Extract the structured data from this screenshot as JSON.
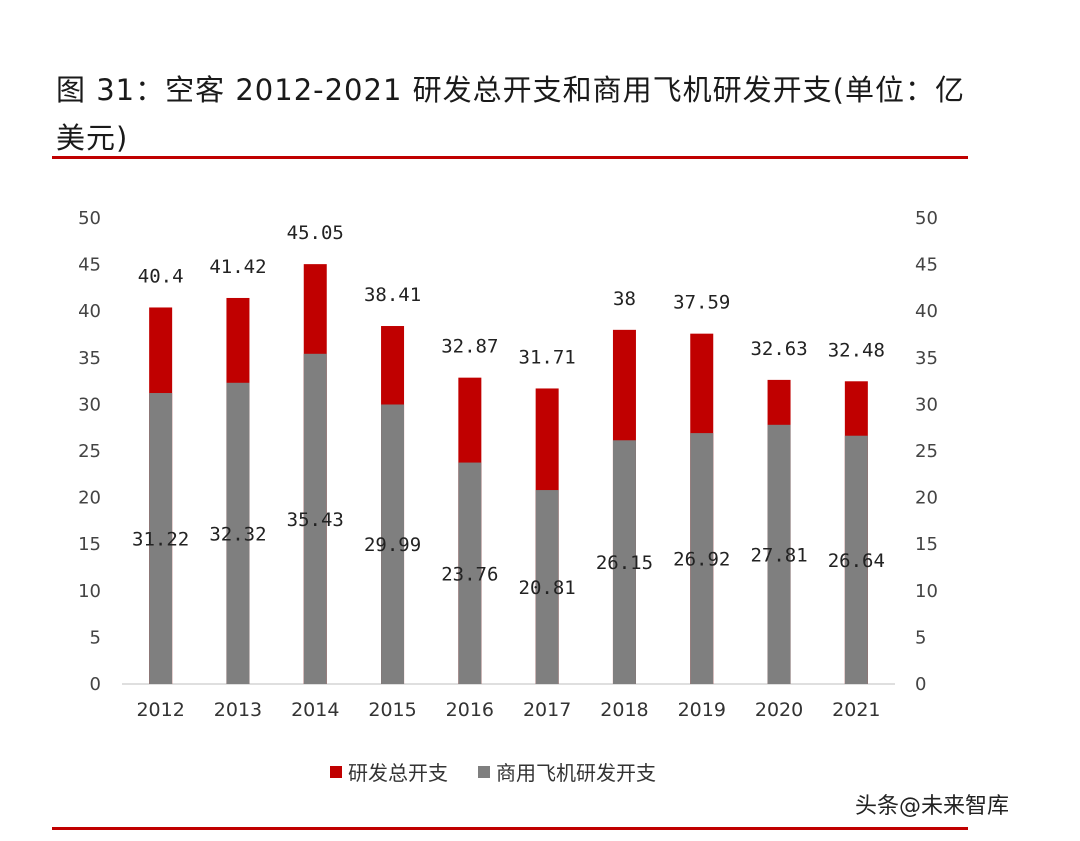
{
  "header": {
    "title": "图 31：空客 2012-2021 研发总开支和商用飞机研发开支(单位：亿美元)"
  },
  "legend": {
    "total": "研发总开支",
    "commercial": "商用飞机研发开支"
  },
  "watermark": {
    "prefix": "头条",
    "name": "@未来智库"
  },
  "colors": {
    "total": "#c00000",
    "commercial": "#7f7f7f",
    "rule": "#c00000"
  },
  "chart_data": {
    "type": "bar",
    "stacked": "overlay",
    "categories": [
      "2012",
      "2013",
      "2014",
      "2015",
      "2016",
      "2017",
      "2018",
      "2019",
      "2020",
      "2021"
    ],
    "series": [
      {
        "name": "研发总开支",
        "values": [
          40.4,
          41.42,
          45.05,
          38.41,
          32.87,
          31.71,
          38,
          37.59,
          32.63,
          32.48
        ],
        "labels": [
          "40.4",
          "41.42",
          "45.05",
          "38.41",
          "32.87",
          "31.71",
          "38",
          "37.59",
          "32.63",
          "32.48"
        ]
      },
      {
        "name": "商用飞机研发开支",
        "values": [
          31.22,
          32.32,
          35.43,
          29.99,
          23.76,
          20.81,
          26.15,
          26.92,
          27.81,
          26.64
        ],
        "labels": [
          "31.22",
          "32.32",
          "35.43",
          "29.99",
          "23.76",
          "20.81",
          "26.15",
          "26.92",
          "27.81",
          "26.64"
        ]
      }
    ],
    "yticks": [
      "0",
      "5",
      "10",
      "15",
      "20",
      "25",
      "30",
      "35",
      "40",
      "45",
      "50"
    ],
    "ylim": [
      0,
      50
    ],
    "title": "图 31：空客 2012-2021 研发总开支和商用飞机研发开支(单位：亿美元)",
    "xlabel": "",
    "ylabel": "",
    "secondary_axis": true,
    "legend_position": "bottom"
  }
}
